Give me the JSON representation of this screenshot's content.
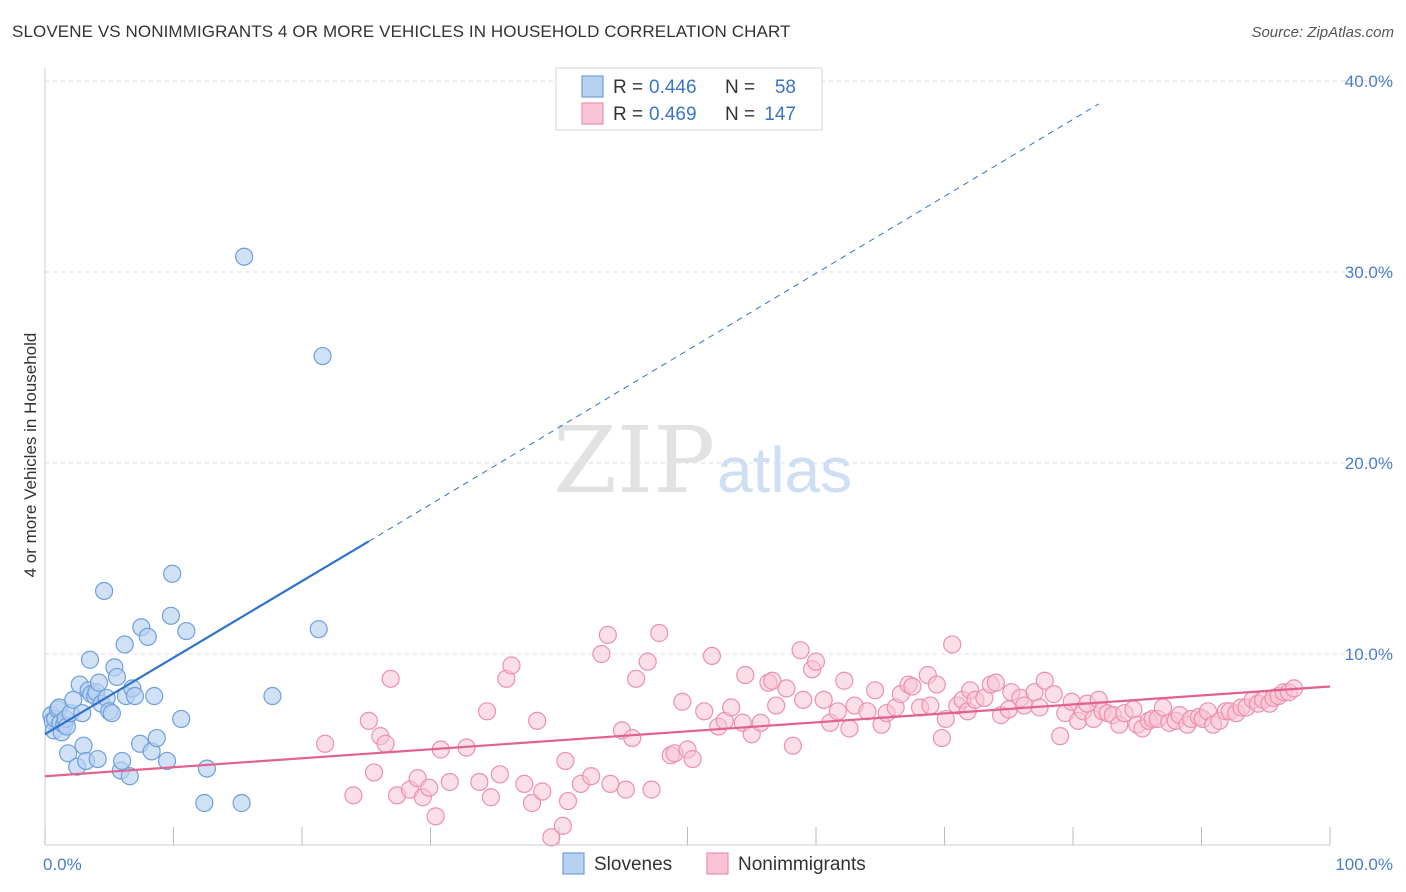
{
  "title": "SLOVENE VS NONIMMIGRANTS 4 OR MORE VEHICLES IN HOUSEHOLD CORRELATION CHART",
  "source": "Source: ZipAtlas.com",
  "watermark": {
    "zip": "ZIP",
    "atlas": "atlas"
  },
  "legend_box": {
    "rows": [
      {
        "r_label": "R =",
        "r_value": "0.446",
        "n_label": "N =",
        "n_value": "58"
      },
      {
        "r_label": "R =",
        "r_value": "0.469",
        "n_label": "N =",
        "n_value": "147"
      }
    ]
  },
  "bottom_legend": [
    "Slovenes",
    "Nonimmigrants"
  ],
  "colors": {
    "slovenes_fill": "#b7d1f1",
    "slovenes_stroke": "#6f9fd9",
    "slovenes_line": "#2f72cc",
    "nonimm_fill": "#f8c4d3",
    "nonimm_stroke": "#ec90ae",
    "nonimm_line": "#e2628d",
    "tick": "#4a7dc9",
    "grid": "#dddddd"
  },
  "chart_data": {
    "type": "scatter",
    "title": "SLOVENE VS NONIMMIGRANTS 4 OR MORE VEHICLES IN HOUSEHOLD CORRELATION CHART",
    "xlabel": "",
    "ylabel": "4 or more Vehicles in Household",
    "xlim": [
      0,
      100
    ],
    "ylim": [
      0,
      40
    ],
    "x_tick_labels": [
      "0.0%",
      "100.0%"
    ],
    "y_ticks": [
      10,
      20,
      30,
      40
    ],
    "y_tick_labels": [
      "10.0%",
      "20.0%",
      "30.0%",
      "40.0%"
    ],
    "grid": "horizontal dashed",
    "series": [
      {
        "name": "Slovenes",
        "r": 0.446,
        "n": 58,
        "trend": {
          "x1": 0,
          "y1": 5.8,
          "x2": 25.2,
          "y2": 15.9,
          "dashed_to_x": 82,
          "dashed_to_y": 38.8
        },
        "points": [
          [
            0.5,
            6.8
          ],
          [
            0.6,
            6.5
          ],
          [
            0.7,
            6.0
          ],
          [
            0.8,
            6.6
          ],
          [
            1.0,
            7.1
          ],
          [
            1.1,
            7.2
          ],
          [
            1.2,
            6.4
          ],
          [
            1.3,
            5.9
          ],
          [
            1.5,
            6.3
          ],
          [
            1.6,
            6.6
          ],
          [
            1.7,
            6.2
          ],
          [
            1.8,
            4.8
          ],
          [
            2.0,
            6.9
          ],
          [
            2.2,
            7.6
          ],
          [
            2.5,
            4.1
          ],
          [
            2.7,
            8.4
          ],
          [
            2.9,
            6.9
          ],
          [
            3.0,
            5.2
          ],
          [
            3.2,
            4.4
          ],
          [
            3.4,
            8.1
          ],
          [
            3.5,
            9.7
          ],
          [
            3.6,
            7.9
          ],
          [
            3.9,
            7.8
          ],
          [
            4.0,
            8.0
          ],
          [
            4.1,
            4.5
          ],
          [
            4.2,
            8.5
          ],
          [
            4.4,
            7.4
          ],
          [
            4.6,
            13.3
          ],
          [
            4.8,
            7.7
          ],
          [
            5.0,
            7.0
          ],
          [
            5.2,
            6.9
          ],
          [
            5.4,
            9.3
          ],
          [
            5.6,
            8.8
          ],
          [
            5.9,
            3.9
          ],
          [
            6.0,
            4.4
          ],
          [
            6.2,
            10.5
          ],
          [
            6.3,
            7.8
          ],
          [
            6.6,
            3.6
          ],
          [
            6.8,
            8.2
          ],
          [
            7.0,
            7.8
          ],
          [
            7.4,
            5.3
          ],
          [
            7.5,
            11.4
          ],
          [
            8.0,
            10.9
          ],
          [
            8.3,
            4.9
          ],
          [
            8.5,
            7.8
          ],
          [
            8.7,
            5.6
          ],
          [
            9.5,
            4.4
          ],
          [
            9.8,
            12.0
          ],
          [
            9.9,
            14.2
          ],
          [
            10.6,
            6.6
          ],
          [
            11.0,
            11.2
          ],
          [
            12.4,
            2.2
          ],
          [
            12.6,
            4.0
          ],
          [
            15.3,
            2.2
          ],
          [
            15.5,
            30.8
          ],
          [
            17.7,
            7.8
          ],
          [
            21.3,
            11.3
          ],
          [
            21.6,
            25.6
          ]
        ]
      },
      {
        "name": "Nonimmigrants",
        "r": 0.469,
        "n": 147,
        "trend": {
          "x1": 0,
          "y1": 3.6,
          "x2": 100,
          "y2": 8.3
        },
        "points": [
          [
            21.8,
            5.3
          ],
          [
            24.0,
            2.6
          ],
          [
            25.2,
            6.5
          ],
          [
            25.6,
            3.8
          ],
          [
            26.1,
            5.7
          ],
          [
            26.5,
            5.3
          ],
          [
            26.9,
            8.7
          ],
          [
            27.4,
            2.6
          ],
          [
            28.4,
            2.9
          ],
          [
            29.0,
            3.5
          ],
          [
            29.4,
            2.5
          ],
          [
            29.9,
            3.0
          ],
          [
            30.4,
            1.5
          ],
          [
            30.8,
            5.0
          ],
          [
            31.5,
            3.3
          ],
          [
            32.8,
            5.1
          ],
          [
            33.8,
            3.3
          ],
          [
            34.4,
            7.0
          ],
          [
            34.7,
            2.5
          ],
          [
            35.4,
            3.7
          ],
          [
            35.9,
            8.7
          ],
          [
            36.3,
            9.4
          ],
          [
            37.3,
            3.2
          ],
          [
            37.9,
            2.2
          ],
          [
            38.3,
            6.5
          ],
          [
            38.7,
            2.8
          ],
          [
            39.4,
            0.4
          ],
          [
            40.3,
            1.0
          ],
          [
            40.5,
            4.4
          ],
          [
            40.7,
            2.3
          ],
          [
            41.7,
            3.2
          ],
          [
            42.5,
            3.6
          ],
          [
            43.3,
            10.0
          ],
          [
            43.8,
            11.0
          ],
          [
            44.0,
            3.2
          ],
          [
            44.9,
            6.0
          ],
          [
            45.2,
            2.9
          ],
          [
            45.7,
            5.6
          ],
          [
            46.0,
            8.7
          ],
          [
            46.9,
            9.6
          ],
          [
            47.2,
            2.9
          ],
          [
            47.8,
            11.1
          ],
          [
            48.7,
            4.7
          ],
          [
            49.0,
            4.8
          ],
          [
            49.6,
            7.5
          ],
          [
            50.0,
            5.0
          ],
          [
            50.4,
            4.5
          ],
          [
            51.3,
            7.0
          ],
          [
            51.9,
            9.9
          ],
          [
            52.4,
            6.2
          ],
          [
            52.9,
            6.5
          ],
          [
            53.4,
            7.2
          ],
          [
            54.3,
            6.4
          ],
          [
            54.5,
            8.9
          ],
          [
            55.0,
            5.8
          ],
          [
            55.7,
            6.4
          ],
          [
            56.3,
            8.5
          ],
          [
            56.6,
            8.6
          ],
          [
            56.9,
            7.3
          ],
          [
            57.7,
            8.2
          ],
          [
            58.2,
            5.2
          ],
          [
            58.8,
            10.2
          ],
          [
            59.0,
            7.6
          ],
          [
            59.7,
            9.2
          ],
          [
            60.0,
            9.6
          ],
          [
            60.6,
            7.6
          ],
          [
            61.1,
            6.4
          ],
          [
            61.7,
            7.0
          ],
          [
            62.2,
            8.6
          ],
          [
            62.6,
            6.1
          ],
          [
            63.0,
            7.3
          ],
          [
            64.0,
            7.0
          ],
          [
            64.6,
            8.1
          ],
          [
            65.1,
            6.3
          ],
          [
            65.5,
            6.9
          ],
          [
            66.2,
            7.2
          ],
          [
            66.6,
            7.9
          ],
          [
            67.2,
            8.4
          ],
          [
            67.5,
            8.3
          ],
          [
            68.1,
            7.2
          ],
          [
            68.7,
            8.9
          ],
          [
            68.9,
            7.3
          ],
          [
            69.4,
            8.4
          ],
          [
            69.8,
            5.6
          ],
          [
            70.1,
            6.6
          ],
          [
            70.6,
            10.5
          ],
          [
            71.0,
            7.3
          ],
          [
            71.4,
            7.6
          ],
          [
            71.8,
            7.0
          ],
          [
            72.0,
            8.1
          ],
          [
            72.4,
            7.6
          ],
          [
            73.1,
            7.7
          ],
          [
            73.6,
            8.4
          ],
          [
            74.0,
            8.5
          ],
          [
            74.4,
            6.8
          ],
          [
            75.0,
            7.1
          ],
          [
            75.2,
            8.0
          ],
          [
            75.9,
            7.7
          ],
          [
            76.2,
            7.3
          ],
          [
            77.0,
            8.0
          ],
          [
            77.4,
            7.2
          ],
          [
            77.8,
            8.6
          ],
          [
            78.5,
            7.9
          ],
          [
            79.0,
            5.7
          ],
          [
            79.4,
            6.9
          ],
          [
            79.9,
            7.5
          ],
          [
            80.4,
            6.5
          ],
          [
            80.8,
            7.0
          ],
          [
            81.1,
            7.4
          ],
          [
            81.6,
            6.6
          ],
          [
            82.0,
            7.6
          ],
          [
            82.3,
            7.0
          ],
          [
            82.7,
            6.9
          ],
          [
            83.1,
            6.8
          ],
          [
            83.6,
            6.3
          ],
          [
            84.0,
            6.9
          ],
          [
            84.7,
            7.1
          ],
          [
            85.0,
            6.3
          ],
          [
            85.4,
            6.1
          ],
          [
            85.9,
            6.5
          ],
          [
            86.2,
            6.6
          ],
          [
            86.6,
            6.6
          ],
          [
            87.0,
            7.2
          ],
          [
            87.5,
            6.4
          ],
          [
            88.0,
            6.5
          ],
          [
            88.3,
            6.8
          ],
          [
            88.9,
            6.3
          ],
          [
            89.2,
            6.6
          ],
          [
            89.8,
            6.7
          ],
          [
            90.1,
            6.6
          ],
          [
            90.5,
            7.0
          ],
          [
            90.9,
            6.3
          ],
          [
            91.4,
            6.5
          ],
          [
            91.9,
            7.0
          ],
          [
            92.2,
            7.0
          ],
          [
            92.7,
            6.9
          ],
          [
            93.1,
            7.2
          ],
          [
            93.5,
            7.2
          ],
          [
            94.0,
            7.6
          ],
          [
            94.4,
            7.4
          ],
          [
            94.8,
            7.6
          ],
          [
            95.3,
            7.4
          ],
          [
            95.6,
            7.7
          ],
          [
            96.0,
            7.8
          ],
          [
            96.4,
            8.0
          ],
          [
            96.8,
            8.0
          ],
          [
            97.2,
            8.2
          ]
        ]
      }
    ]
  }
}
